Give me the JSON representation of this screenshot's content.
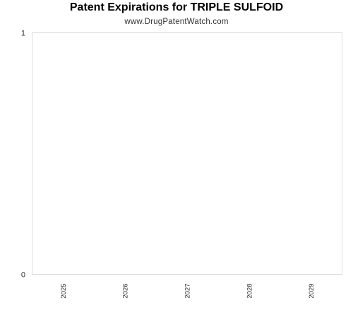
{
  "chart_data": {
    "type": "bar",
    "title": "Patent Expirations for TRIPLE SULFOID",
    "subtitle": "www.DrugPatentWatch.com",
    "categories": [
      "2025",
      "2026",
      "2027",
      "2028",
      "2029"
    ],
    "values": [
      0,
      0,
      0,
      0,
      0
    ],
    "ylim": [
      0,
      1
    ],
    "yticks": [
      "0",
      "1"
    ],
    "grid": false
  },
  "colors": {
    "plot_border": "#dddddd",
    "text": "#333333",
    "title": "#000000"
  }
}
